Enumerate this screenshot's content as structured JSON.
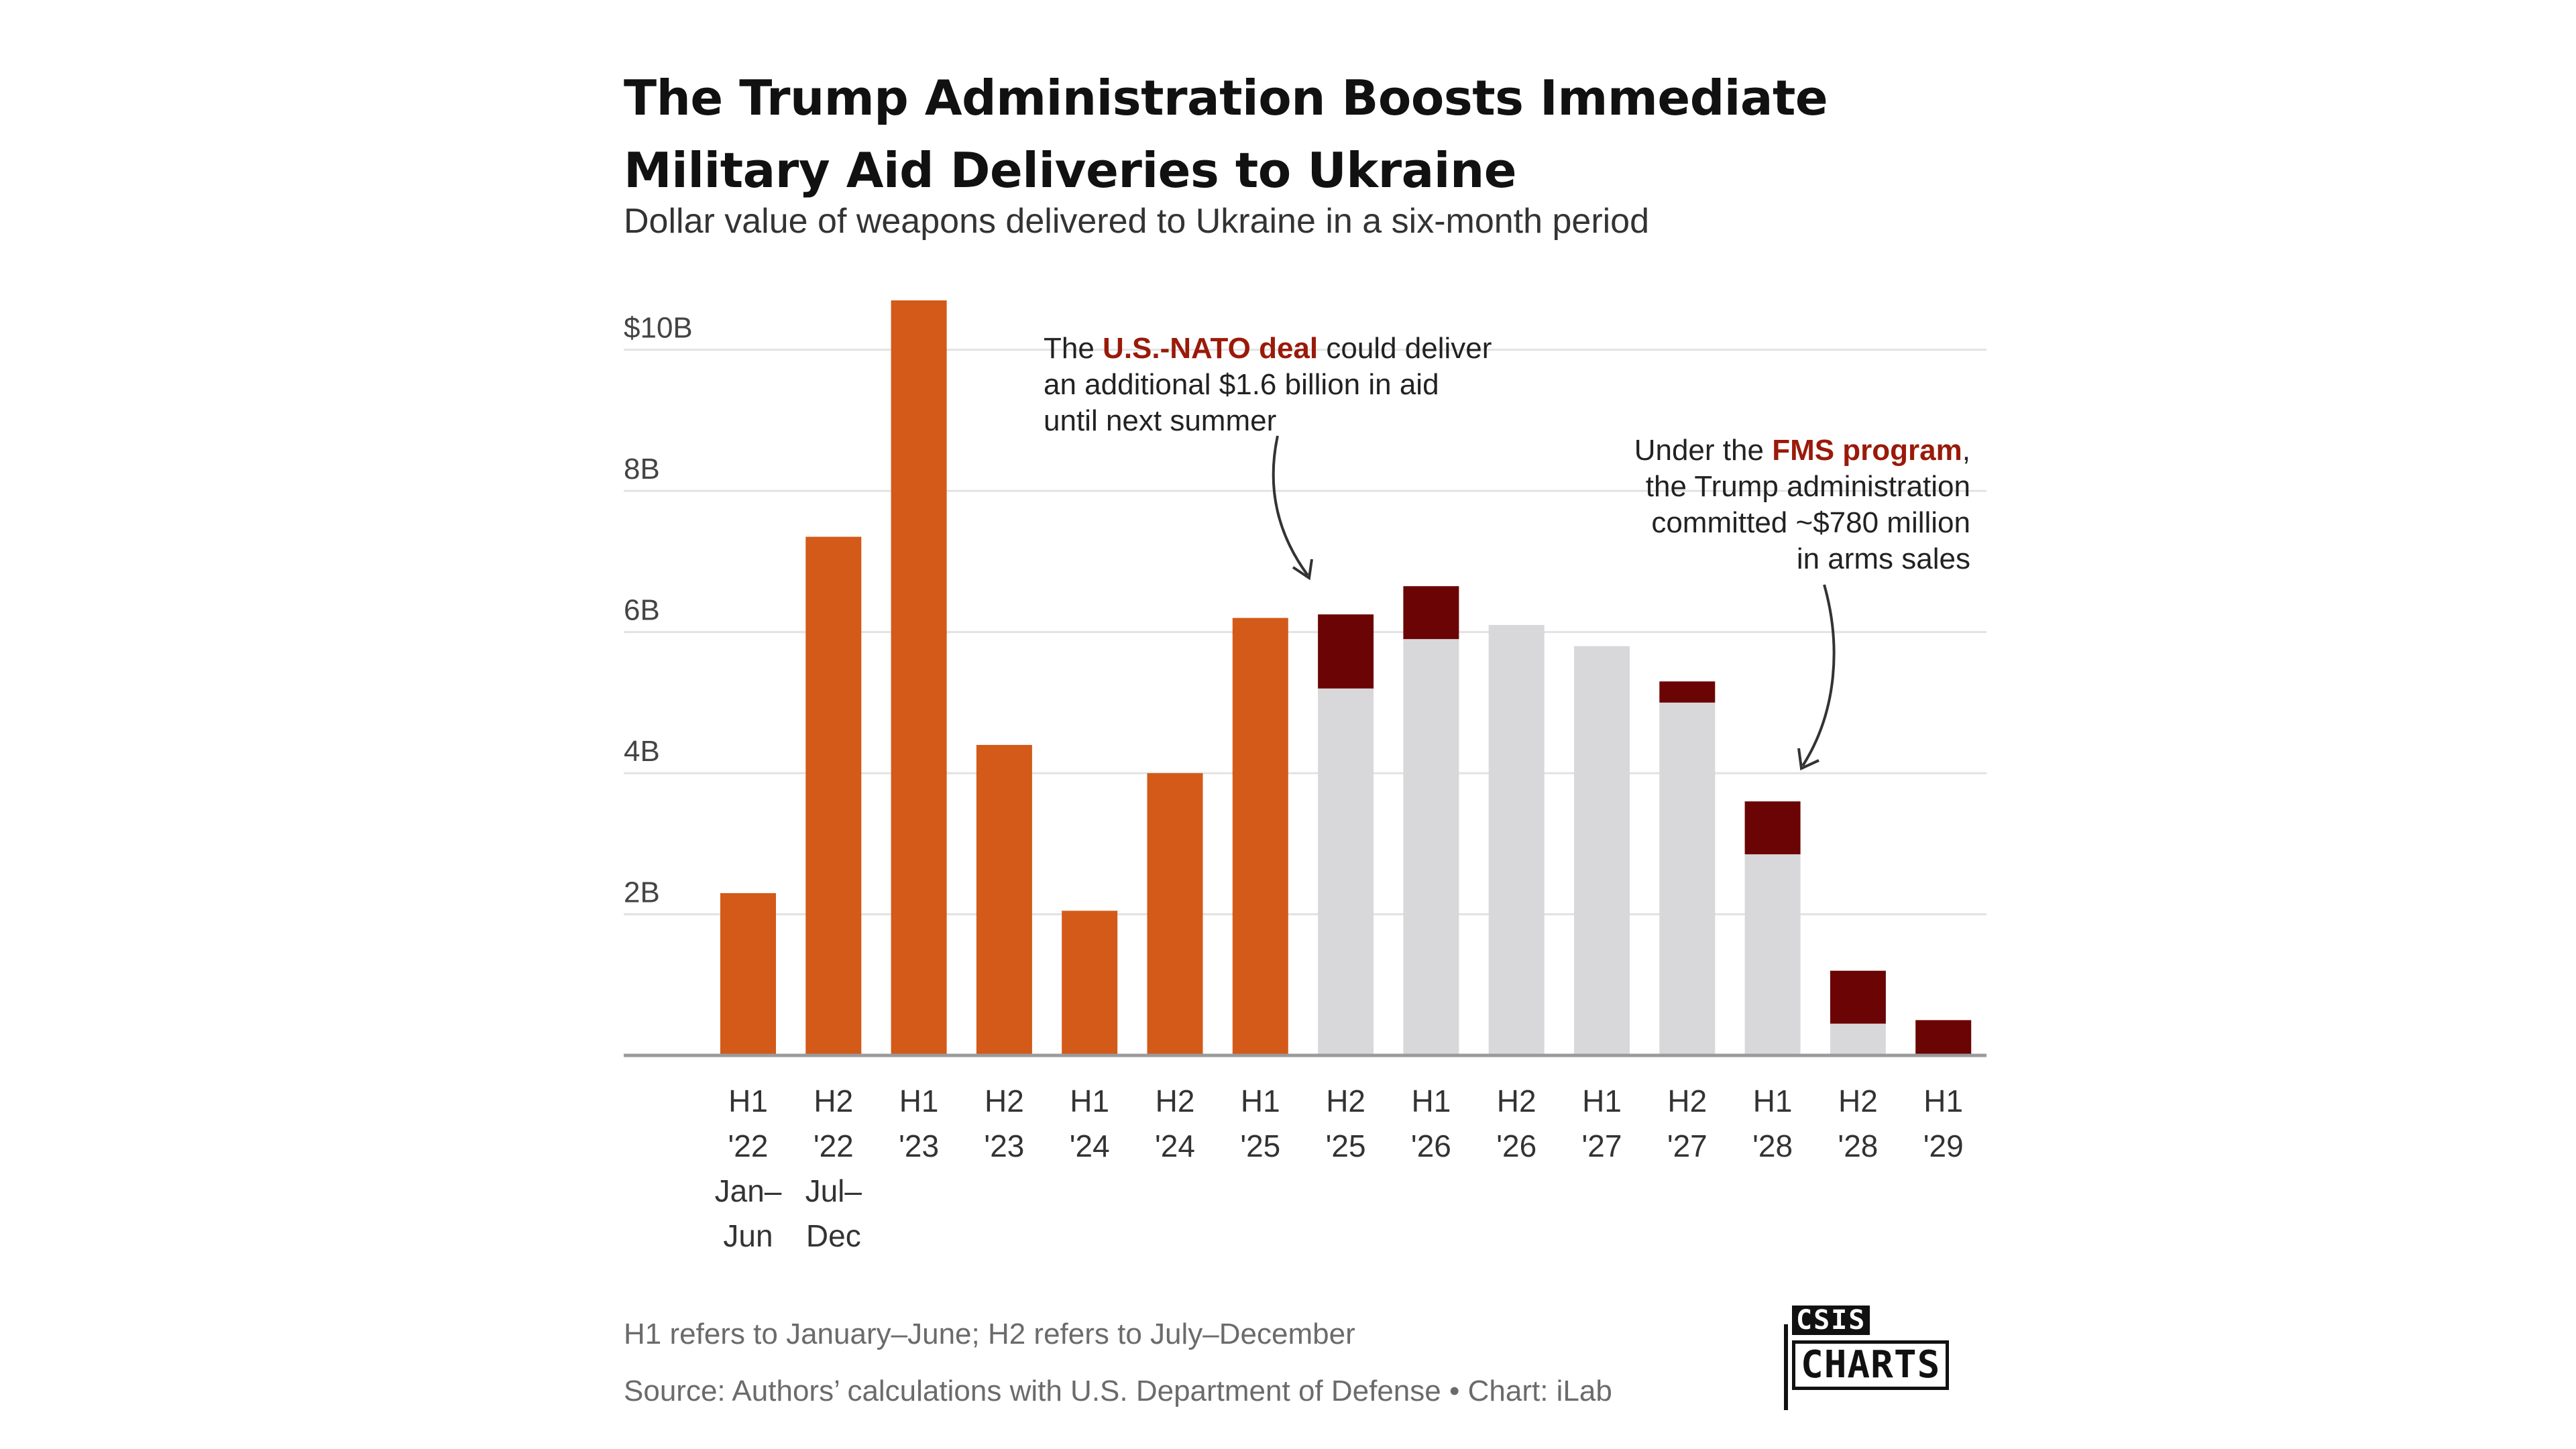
{
  "header": {
    "title": "The Trump Administration Boosts Immediate Military Aid Deliveries to Ukraine",
    "subtitle": "Dollar value of weapons delivered to Ukraine in a six-month period"
  },
  "chart_data": {
    "type": "bar",
    "stacked": true,
    "categories": [
      [
        "H1",
        "'22",
        "Jan–",
        "Jun"
      ],
      [
        "H2",
        "'22",
        "Jul–",
        "Dec"
      ],
      [
        "H1",
        "'23"
      ],
      [
        "H2",
        "'23"
      ],
      [
        "H1",
        "'24"
      ],
      [
        "H2",
        "'24"
      ],
      [
        "H1",
        "'25"
      ],
      [
        "H2",
        "'25"
      ],
      [
        "H1",
        "'26"
      ],
      [
        "H2",
        "'26"
      ],
      [
        "H1",
        "'27"
      ],
      [
        "H2",
        "'27"
      ],
      [
        "H1",
        "'28"
      ],
      [
        "H2",
        "'28"
      ],
      [
        "H1",
        "'29"
      ]
    ],
    "series": [
      {
        "color": "#d35a18",
        "values": [
          2.3,
          7.35,
          10.7,
          4.4,
          2.05,
          4.0,
          6.2,
          0,
          0,
          0,
          0,
          0,
          0,
          0,
          0
        ]
      },
      {
        "color": "#d8d8da",
        "values": [
          0,
          0,
          0,
          0,
          0,
          0,
          0,
          5.2,
          5.9,
          6.1,
          5.8,
          5.0,
          2.85,
          0.45,
          0
        ]
      },
      {
        "color": "#6b0505",
        "values": [
          0,
          0,
          0,
          0,
          0,
          0,
          0,
          1.05,
          0.75,
          0,
          0,
          0.3,
          0.75,
          0.75,
          0.5
        ]
      }
    ],
    "ylim": [
      0,
      10.7
    ],
    "yticks": [
      {
        "value": 2,
        "label": "2B"
      },
      {
        "value": 4,
        "label": "4B"
      },
      {
        "value": 6,
        "label": "6B"
      },
      {
        "value": 8,
        "label": "8B"
      },
      {
        "value": 10,
        "label": "$10B"
      }
    ],
    "grid": true,
    "annotations": [
      {
        "lines": [
          [
            {
              "t": "The "
            },
            {
              "t": "U.S.-NATO deal",
              "hl": true
            },
            {
              "t": " could deliver"
            }
          ],
          [
            {
              "t": "an additional $1.6 billion in aid"
            }
          ],
          [
            {
              "t": "until next summer"
            }
          ]
        ]
      },
      {
        "lines": [
          [
            {
              "t": "Under the "
            },
            {
              "t": "FMS program",
              "hl": true
            },
            {
              "t": ","
            }
          ],
          [
            {
              "t": "the Trump administration"
            }
          ],
          [
            {
              "t": "committed ~$780 million"
            }
          ],
          [
            {
              "t": "in arms sales"
            }
          ]
        ]
      }
    ],
    "highlight_color": "#9a1a0a"
  },
  "footer": {
    "note": "H1 refers to January–June; H2 refers to July–December",
    "source": "Source: Authors’ calculations with U.S. Department of Defense  • Chart: iLab"
  },
  "logo": {
    "brand": "CSIS",
    "word": "CHARTS"
  }
}
